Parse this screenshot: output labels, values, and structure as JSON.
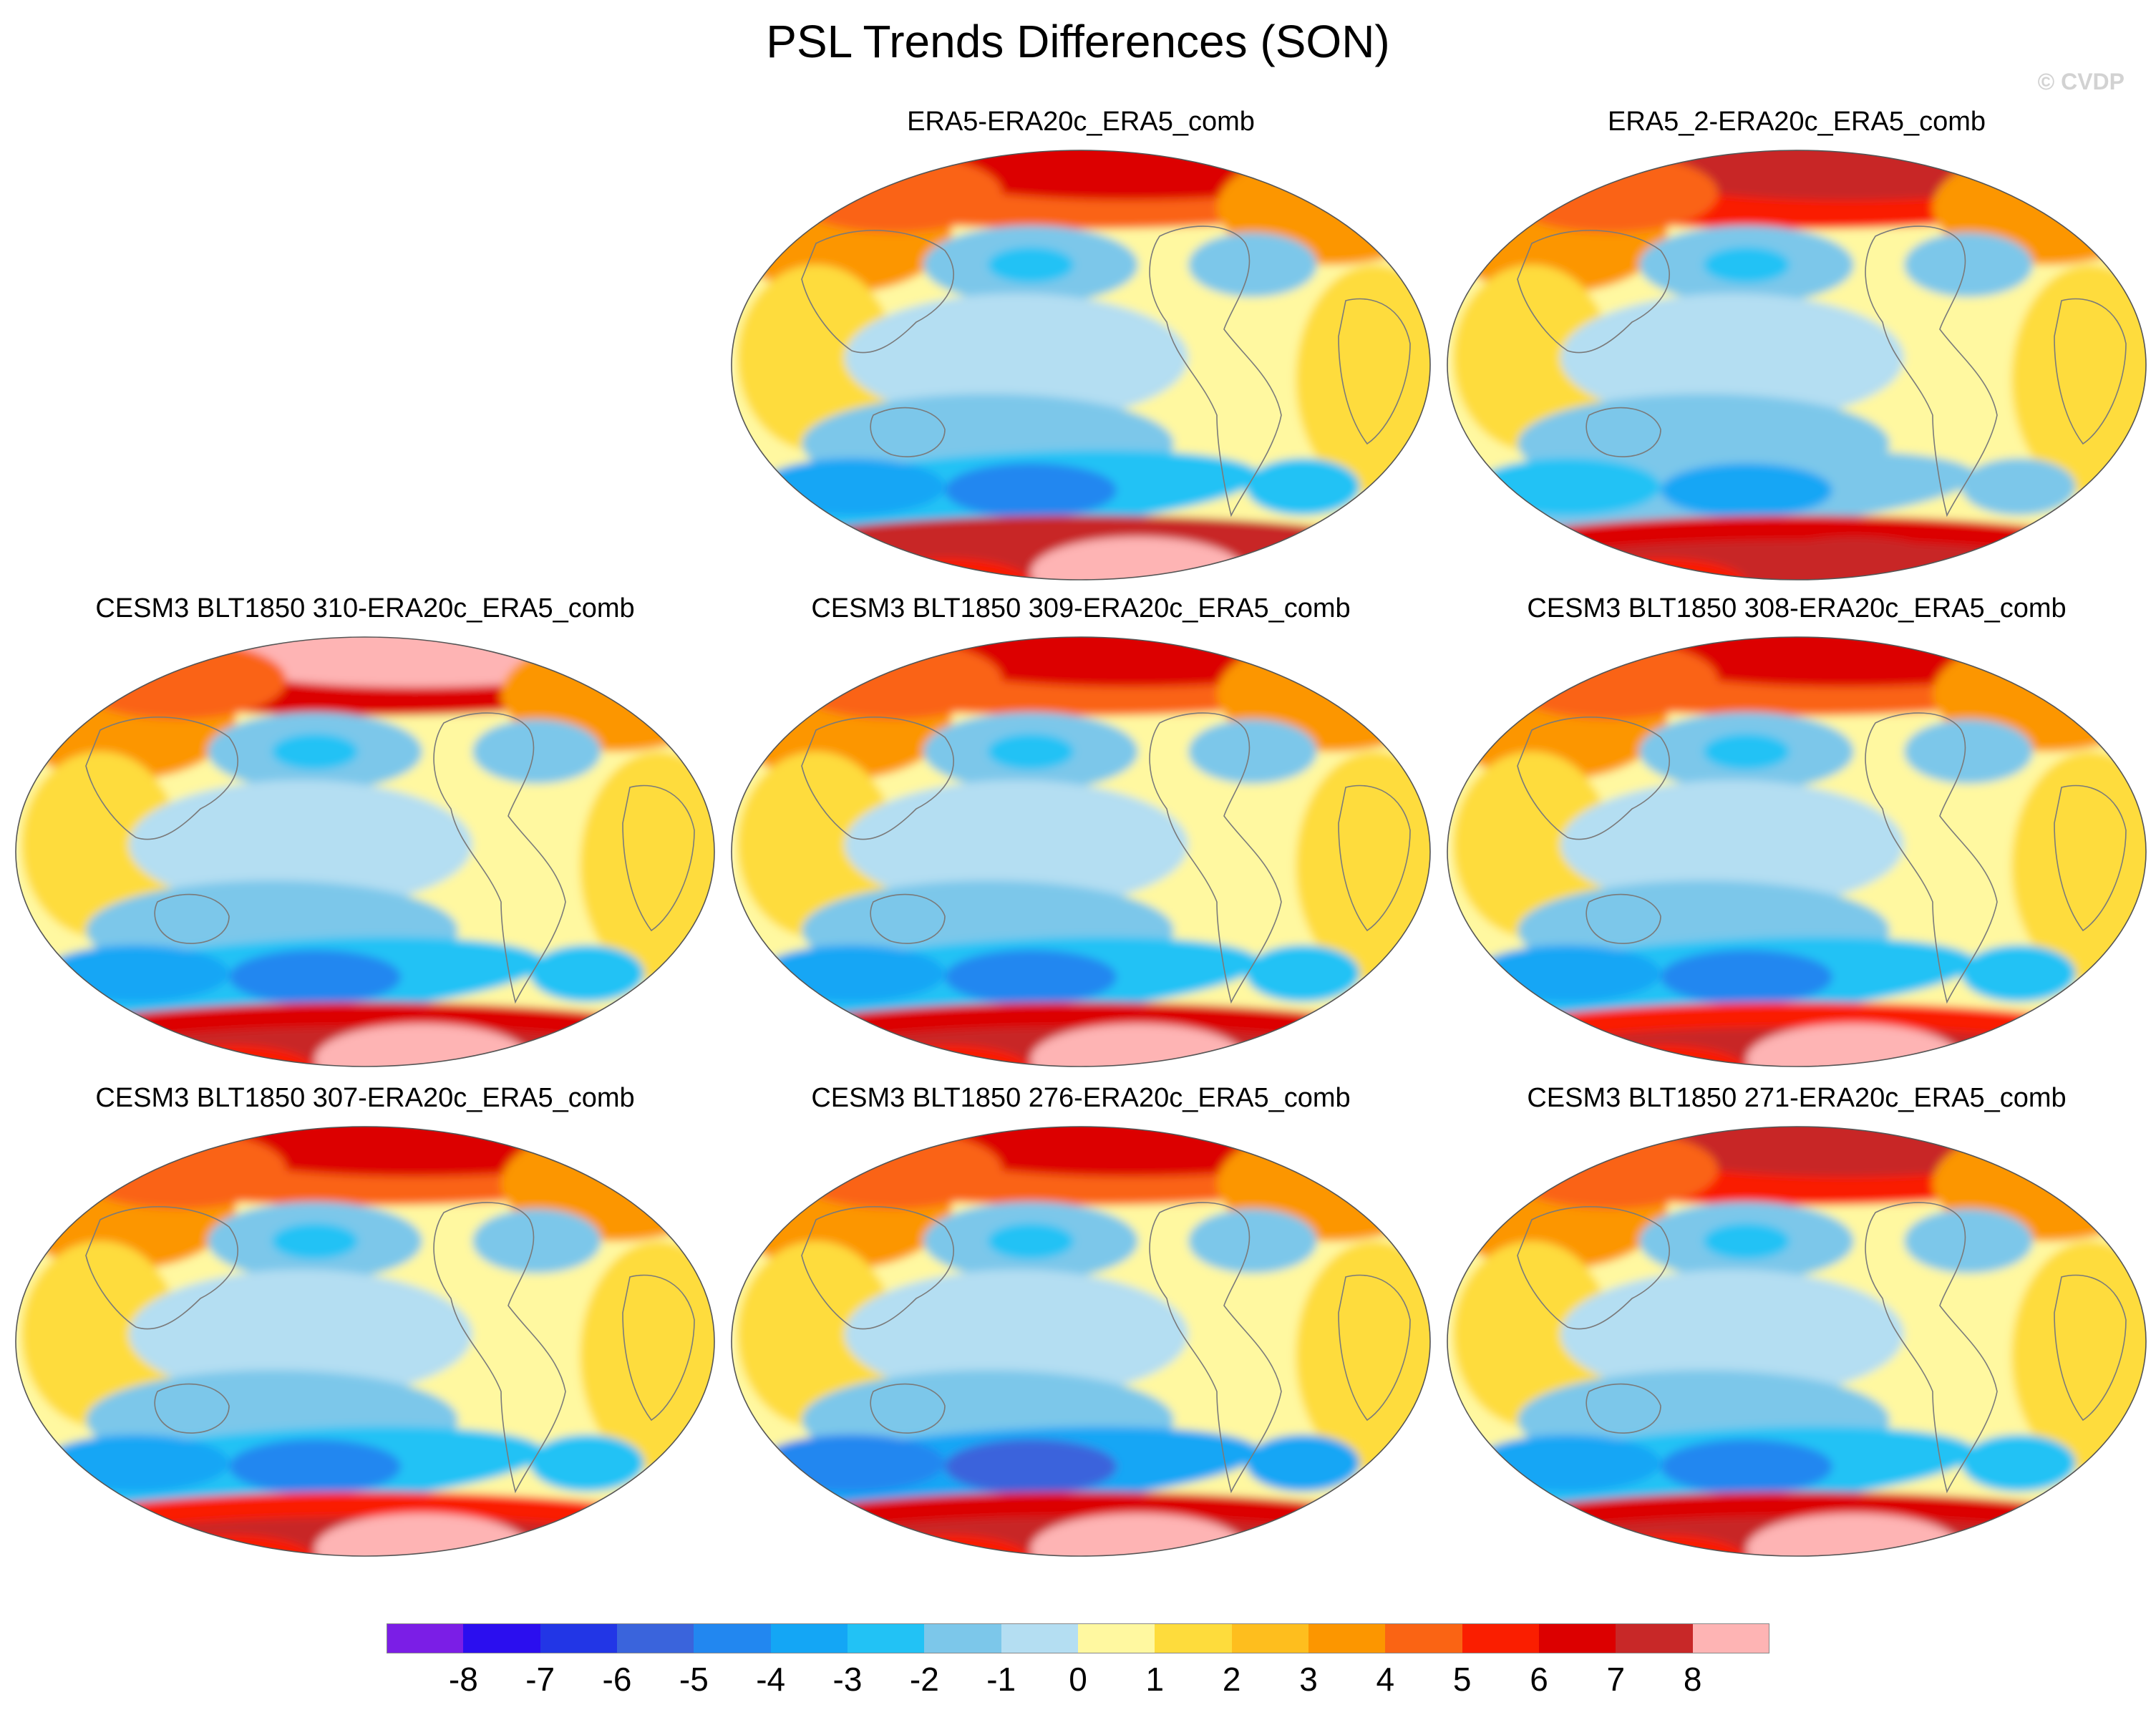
{
  "figure": {
    "title": "PSL Trends Differences (SON)",
    "credit": "© CVDP"
  },
  "colors": {
    "levels": [
      "#7b1ee6",
      "#2b0eef",
      "#2236e6",
      "#3a64dc",
      "#2287f0",
      "#14a6f5",
      "#22c2f5",
      "#7cc7ea",
      "#b4def2",
      "#fff8a0",
      "#fedc3c",
      "#febe1e",
      "#fc9600",
      "#fa6414",
      "#fa1e00",
      "#dc0000",
      "#c82828",
      "#feb4b4"
    ],
    "land_outline": "#7a7a7a",
    "border": "#555555"
  },
  "chart_data": {
    "type": "heatmap",
    "projection": "Robinson (Pacific-centered)",
    "variable": "PSL trend difference",
    "season": "SON",
    "colorbar": {
      "ticks": [
        "-8",
        "-7",
        "-6",
        "-5",
        "-4",
        "-3",
        "-2",
        "-1",
        "0",
        "1",
        "2",
        "3",
        "4",
        "5",
        "6",
        "7",
        "8"
      ],
      "min": -8,
      "max": 8,
      "interval": 1
    },
    "panels": [
      {
        "title": "ERA5-ERA20c_ERA5_comb",
        "southern_ocean_low": -5,
        "antarctic_high": 8,
        "arctic_high": 6,
        "subpolar_pacific_high": 7
      },
      {
        "title": "ERA5_2-ERA20c_ERA5_comb",
        "southern_ocean_low": -4,
        "antarctic_high": 7,
        "arctic_high": 7,
        "subpolar_pacific_high": 6
      },
      {
        "title": "CESM3 BLT1850 310-ERA20c_ERA5_comb",
        "southern_ocean_low": -5,
        "antarctic_high": 8,
        "arctic_high": 8,
        "subpolar_pacific_high": 6
      },
      {
        "title": "CESM3 BLT1850 309-ERA20c_ERA5_comb",
        "southern_ocean_low": -5,
        "antarctic_high": 8,
        "arctic_high": 6,
        "subpolar_pacific_high": 6
      },
      {
        "title": "CESM3 BLT1850 308-ERA20c_ERA5_comb",
        "southern_ocean_low": -5,
        "antarctic_high": 8,
        "arctic_high": 6,
        "subpolar_pacific_high": 5
      },
      {
        "title": "CESM3 BLT1850 307-ERA20c_ERA5_comb",
        "southern_ocean_low": -5,
        "antarctic_high": 8,
        "arctic_high": 6,
        "subpolar_pacific_high": 5
      },
      {
        "title": "CESM3 BLT1850 276-ERA20c_ERA5_comb",
        "southern_ocean_low": -6,
        "antarctic_high": 8,
        "arctic_high": 6,
        "subpolar_pacific_high": 6
      },
      {
        "title": "CESM3 BLT1850 271-ERA20c_ERA5_comb",
        "southern_ocean_low": -5,
        "antarctic_high": 8,
        "arctic_high": 7,
        "subpolar_pacific_high": 6
      }
    ]
  }
}
